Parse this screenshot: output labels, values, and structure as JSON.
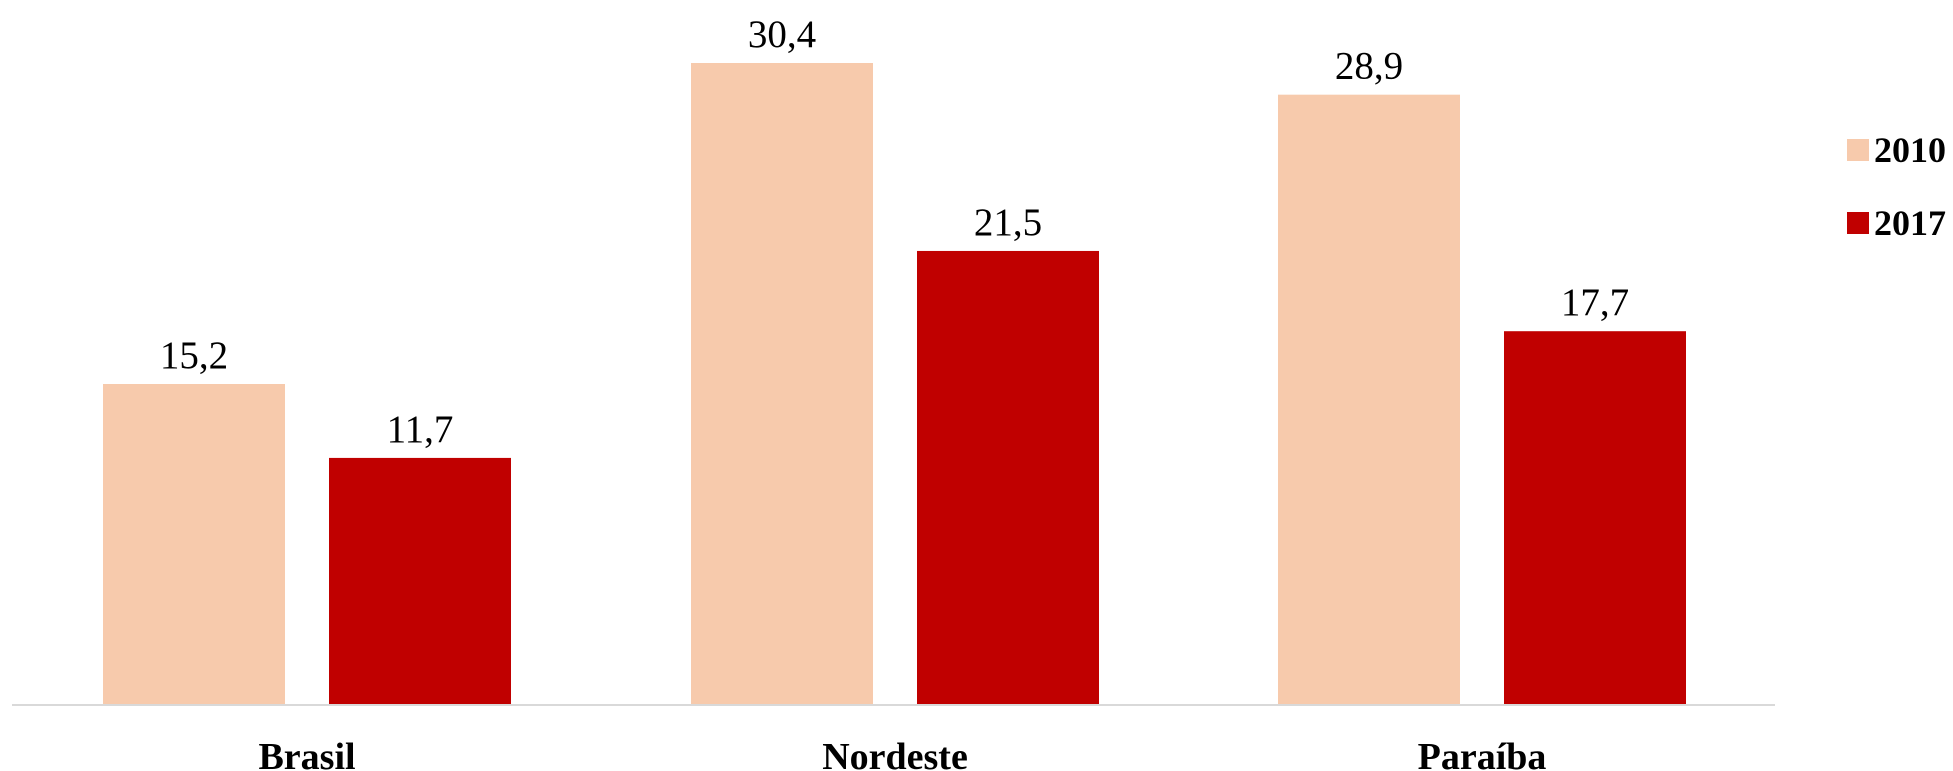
{
  "chart_data": {
    "type": "bar",
    "categories": [
      "Brasil",
      "Nordeste",
      "Paraíba"
    ],
    "series": [
      {
        "name": "2010",
        "values": [
          15.2,
          30.4,
          28.9
        ],
        "labels": [
          "15,2",
          "30,4",
          "28,9"
        ],
        "color": "#F7CAAC"
      },
      {
        "name": "2017",
        "values": [
          11.7,
          21.5,
          17.7
        ],
        "labels": [
          "11,7",
          "21,5",
          "17,7"
        ],
        "color": "#C00000"
      }
    ],
    "ylim": [
      0,
      30.4
    ],
    "grid": false,
    "legend": "right",
    "axis_color": "#D9D9D9"
  }
}
